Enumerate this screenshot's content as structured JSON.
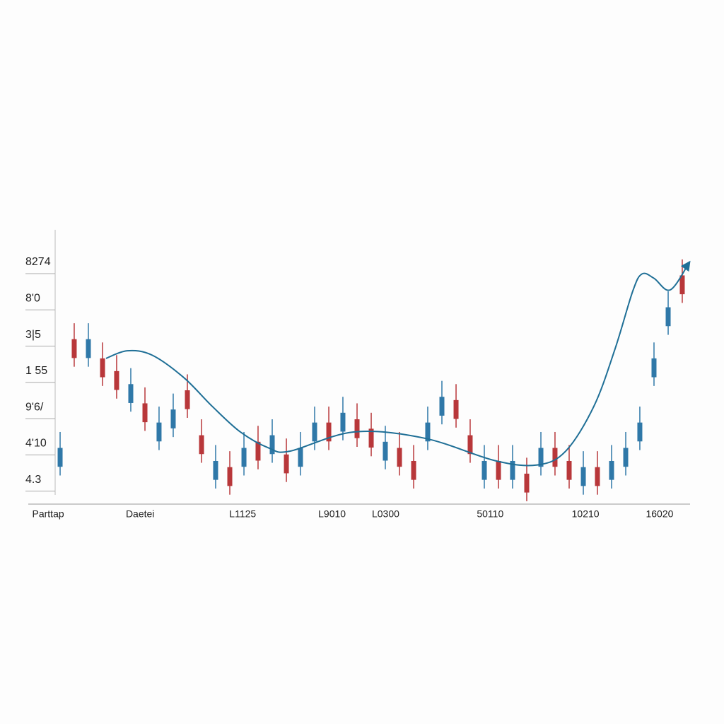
{
  "chart_data": {
    "type": "candlestick",
    "xlim": [
      0,
      100
    ],
    "xticks": [
      {
        "value": 3,
        "label": "Parttap"
      },
      {
        "value": 16.9,
        "label": "Daetei"
      },
      {
        "value": 32.4,
        "label": "L1125"
      },
      {
        "value": 45.9,
        "label": "L9010"
      },
      {
        "value": 54,
        "label": "L0300"
      },
      {
        "value": 69.8,
        "label": "50110"
      },
      {
        "value": 84.2,
        "label": "10210"
      },
      {
        "value": 95.4,
        "label": "16020"
      }
    ],
    "ylim": [
      -0.67,
      6.8
    ],
    "yticks": [
      {
        "value": 0,
        "label": "4.3"
      },
      {
        "value": 1,
        "label": "4'10"
      },
      {
        "value": 2,
        "label": "9'6/"
      },
      {
        "value": 3,
        "label": "1 55"
      },
      {
        "value": 4,
        "label": "3|5"
      },
      {
        "value": 5,
        "label": "8'0"
      },
      {
        "value": 6,
        "label": "8274"
      }
    ],
    "up_color": "#2f78a8",
    "down_color": "#b8373a",
    "line_color": "#1f6f96",
    "x": [
      4.81,
      6.94,
      9.08,
      11.22,
      13.35,
      15.49,
      17.63,
      19.76,
      21.9,
      24.04,
      26.18,
      28.31,
      30.45,
      32.59,
      34.72,
      36.86,
      39.0,
      41.13,
      43.27,
      45.41,
      47.54,
      49.68,
      51.82,
      53.95,
      56.09,
      58.23,
      60.36,
      62.5,
      64.64,
      66.77,
      68.91,
      71.05,
      73.18,
      75.32,
      77.46,
      79.59,
      81.73,
      83.87,
      86.0,
      88.14,
      90.28,
      92.41,
      94.55,
      96.69,
      98.82
    ],
    "open": [
      0.36,
      3.88,
      3.36,
      3.35,
      3.0,
      2.12,
      2.11,
      1.06,
      1.42,
      2.47,
      1.23,
      0.0,
      0.35,
      0.36,
      1.05,
      0.71,
      0.7,
      0.36,
      1.06,
      1.58,
      1.33,
      1.67,
      1.41,
      0.53,
      0.88,
      0.52,
      1.06,
      1.77,
      2.2,
      1.23,
      0.0,
      0.52,
      0.0,
      0.17,
      0.36,
      0.88,
      0.52,
      -0.17,
      0.35,
      0.0,
      0.36,
      1.06,
      2.83,
      4.24,
      5.64
    ],
    "high": [
      1.32,
      4.32,
      4.32,
      3.79,
      3.44,
      3.08,
      2.55,
      2.02,
      2.38,
      2.91,
      1.67,
      0.96,
      0.79,
      1.32,
      1.49,
      1.67,
      1.14,
      1.32,
      2.02,
      2.02,
      2.29,
      2.11,
      1.85,
      1.49,
      1.32,
      0.96,
      2.02,
      2.73,
      2.64,
      1.67,
      0.96,
      0.96,
      0.96,
      0.61,
      1.32,
      1.32,
      0.96,
      0.79,
      0.79,
      0.96,
      1.32,
      2.02,
      3.79,
      5.2,
      6.08
    ],
    "low": [
      0.12,
      3.12,
      3.12,
      2.59,
      2.24,
      1.88,
      1.35,
      0.82,
      1.18,
      1.71,
      0.47,
      -0.24,
      -0.41,
      0.12,
      0.29,
      0.47,
      -0.06,
      0.12,
      0.82,
      0.82,
      1.09,
      0.91,
      0.65,
      0.29,
      0.12,
      -0.24,
      0.82,
      1.53,
      1.44,
      0.47,
      -0.24,
      -0.24,
      -0.24,
      -0.59,
      0.12,
      0.12,
      -0.24,
      -0.41,
      -0.41,
      -0.24,
      0.12,
      0.82,
      2.59,
      4.0,
      4.88
    ],
    "close": [
      0.88,
      3.36,
      3.88,
      2.83,
      2.48,
      2.64,
      1.59,
      1.58,
      1.94,
      1.95,
      0.71,
      0.52,
      -0.17,
      0.88,
      0.53,
      1.23,
      0.18,
      0.88,
      1.58,
      1.06,
      1.85,
      1.15,
      0.89,
      1.05,
      0.36,
      0.0,
      1.58,
      2.29,
      1.68,
      0.71,
      0.52,
      0.0,
      0.52,
      -0.35,
      0.88,
      0.36,
      0.0,
      0.35,
      -0.17,
      0.52,
      0.88,
      1.58,
      3.35,
      4.76,
      5.12
    ],
    "trend_x": [
      11.75,
      14.96,
      18.7,
      23.5,
      27.78,
      32.05,
      36.32,
      39.53,
      49.15,
      59.83,
      70.51,
      76.92,
      81.2,
      85.47,
      88.68,
      91.35,
      92.74,
      94.55,
      97.01,
      99.89
    ],
    "trend_y": [
      3.35,
      3.56,
      3.44,
      2.82,
      2.03,
      1.32,
      0.88,
      0.79,
      1.32,
      1.15,
      0.53,
      0.41,
      0.79,
      2.03,
      3.62,
      5.21,
      5.68,
      5.56,
      5.24,
      6.0
    ]
  }
}
